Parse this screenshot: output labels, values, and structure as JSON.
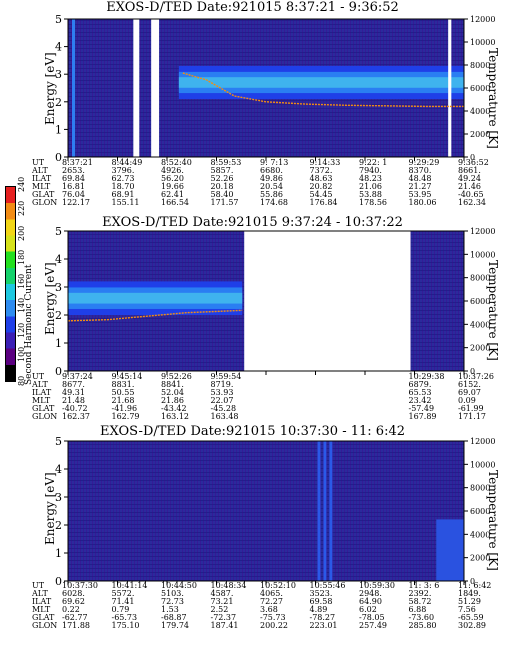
{
  "colorbar": {
    "title": "Second Harmonic Current",
    "ticks": [
      "80",
      "100",
      "120",
      "140",
      "160",
      "180",
      "200",
      "220",
      "240"
    ],
    "colors": [
      "#000000",
      "#5a0080",
      "#3b1fb5",
      "#1f3fe8",
      "#2e8cf0",
      "#1ec8e0",
      "#15d26b",
      "#23e01f",
      "#d6e21a",
      "#f2d617",
      "#f28c15",
      "#e62020"
    ]
  },
  "chart_data": [
    {
      "type": "heatmap",
      "title": "EXOS-D/TED   Date:921015   8:37:21 - 9:36:52",
      "ylabel": "Energy [eV]",
      "ylabel_right": "Temperature [K]",
      "ylim": [
        0,
        5
      ],
      "ylim_right": [
        0,
        12000
      ],
      "yticks": [
        "0",
        "1",
        "2",
        "3",
        "4",
        "5"
      ],
      "yticks_right": [
        "0",
        "2000",
        "4000",
        "6000",
        "8000",
        "10000",
        "12000"
      ],
      "info_labels": [
        "UT",
        "ALT",
        "ILAT",
        "MLT",
        "GLAT",
        "GLON"
      ],
      "columns": [
        [
          "8:37:21",
          "2653.",
          "69.84",
          "16.81",
          "76.04",
          "122.17"
        ],
        [
          "8:44:49",
          "3796.",
          "62.73",
          "18.70",
          "68.91",
          "155.11"
        ],
        [
          "8:52:40",
          "4926.",
          "56.20",
          "19.66",
          "62.41",
          "166.54"
        ],
        [
          "8:59:53",
          "5857.",
          "52.26",
          "20.18",
          "58.40",
          "171.57"
        ],
        [
          "9: 7:13",
          "6680.",
          "49.86",
          "20.54",
          "55.86",
          "174.68"
        ],
        [
          "9:14:33",
          "7372.",
          "48.63",
          "20.82",
          "54.45",
          "176.84"
        ],
        [
          "9:22: 1",
          "7940.",
          "48.23",
          "21.06",
          "53.88",
          "178.56"
        ],
        [
          "9:29:29",
          "8370.",
          "48.48",
          "21.27",
          "53.95",
          "180.06"
        ],
        [
          "9:36:52",
          "8661.",
          "49.24",
          "21.46",
          "-40.65",
          "162.34"
        ]
      ],
      "bands": [
        {
          "x": [
            0.28,
            1.0
          ],
          "e_low": 2.1,
          "e_high": 3.3,
          "level": "high"
        }
      ],
      "temperature_trace": [
        {
          "x": 0.29,
          "t": 7300
        },
        {
          "x": 0.35,
          "t": 6700
        },
        {
          "x": 0.42,
          "t": 5300
        },
        {
          "x": 0.5,
          "t": 4800
        },
        {
          "x": 0.6,
          "t": 4600
        },
        {
          "x": 0.7,
          "t": 4500
        },
        {
          "x": 0.8,
          "t": 4450
        },
        {
          "x": 0.9,
          "t": 4400
        },
        {
          "x": 1.0,
          "t": 4400
        }
      ],
      "gaps": [
        [
          0.165,
          0.18
        ],
        [
          0.21,
          0.23
        ],
        [
          0.96,
          0.968
        ]
      ]
    },
    {
      "type": "heatmap",
      "title": "EXOS-D/TED    Date:921015   9:37:24 - 10:37:22",
      "ylabel": "Energy [eV]",
      "ylabel_right": "Temperature [K]",
      "ylim": [
        0,
        5
      ],
      "ylim_right": [
        0,
        12000
      ],
      "yticks": [
        "0",
        "1",
        "2",
        "3",
        "4",
        "5"
      ],
      "yticks_right": [
        "0",
        "2000",
        "4000",
        "6000",
        "8000",
        "10000",
        "12000"
      ],
      "info_labels": [
        "UT",
        "ALT",
        "ILAT",
        "MLT",
        "GLAT",
        "GLON"
      ],
      "columns": [
        [
          "9:37:24",
          "8677.",
          "49.31",
          "21.48",
          "-40.72",
          "162.37"
        ],
        [
          "9:45:14",
          "8831.",
          "50.55",
          "21.68",
          "-41.96",
          "162.79"
        ],
        [
          "9:52:26",
          "8841.",
          "52.04",
          "21.86",
          "-43.42",
          "163.12"
        ],
        [
          "9:59:54",
          "8719.",
          "53.93",
          "22.07",
          "-45.28",
          "163.48"
        ],
        [
          "",
          "",
          "",
          "",
          "",
          ""
        ],
        [
          "",
          "",
          "",
          "",
          "",
          ""
        ],
        [
          "",
          "",
          "",
          "",
          "",
          ""
        ],
        [
          "10:29:38",
          "6879.",
          "65.53",
          "23.42",
          "-57.49",
          "167.89"
        ],
        [
          "10:37:26",
          "6152.",
          "69.07",
          "0.09",
          "-61.99",
          "171.17"
        ]
      ],
      "bands": [
        {
          "x": [
            0.0,
            0.44
          ],
          "e_low": 2.0,
          "e_high": 3.2,
          "level": "high"
        }
      ],
      "temperature_trace": [
        {
          "x": 0.0,
          "t": 4300
        },
        {
          "x": 0.1,
          "t": 4400
        },
        {
          "x": 0.2,
          "t": 4700
        },
        {
          "x": 0.3,
          "t": 5000
        },
        {
          "x": 0.44,
          "t": 5200
        }
      ],
      "gaps": [
        [
          0.445,
          0.865
        ]
      ]
    },
    {
      "type": "heatmap",
      "title": "EXOS-D/TED   Date:921015  10:37:30 - 11: 6:42",
      "ylabel": "Energy [eV]",
      "ylabel_right": "Temperature [K]",
      "ylim": [
        0,
        5
      ],
      "ylim_right": [
        0,
        12000
      ],
      "yticks": [
        "0",
        "1",
        "2",
        "3",
        "4",
        "5"
      ],
      "yticks_right": [
        "0",
        "2000",
        "4000",
        "6000",
        "8000",
        "10000",
        "12000"
      ],
      "info_labels": [
        "UT",
        "ALT",
        "ILAT",
        "MLT",
        "GLAT",
        "GLON"
      ],
      "columns": [
        [
          "10:37:30",
          "6028.",
          "69.62",
          "0.22",
          "-62.77",
          "171.88"
        ],
        [
          "10:41:14",
          "5572.",
          "71.41",
          "0.79",
          "-65.73",
          "175.10"
        ],
        [
          "10:44:50",
          "5103.",
          "72.73",
          "1.53",
          "-68.87",
          "179.74"
        ],
        [
          "10:48:34",
          "4587.",
          "73.21",
          "2.52",
          "-72.37",
          "187.41"
        ],
        [
          "10:52:10",
          "4065.",
          "72.27",
          "3.68",
          "-75.73",
          "200.22"
        ],
        [
          "10:55:46",
          "3523.",
          "69.58",
          "4.89",
          "-78.27",
          "223.01"
        ],
        [
          "10:59:30",
          "2948.",
          "64.90",
          "6.02",
          "-78.05",
          "257.49"
        ],
        [
          "11: 3: 6",
          "2392.",
          "58.72",
          "6.88",
          "-73.60",
          "285.80"
        ],
        [
          "11: 6:42",
          "1849.",
          "51.29",
          "7.56",
          "-65.59",
          "302.89"
        ]
      ],
      "bands": [],
      "temperature_trace": [],
      "gaps": []
    }
  ]
}
